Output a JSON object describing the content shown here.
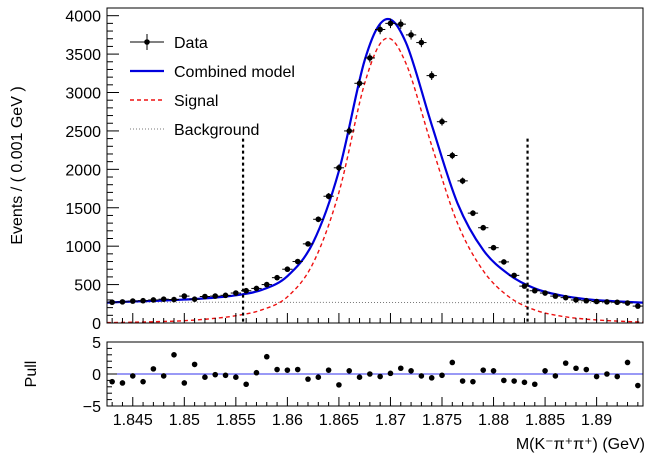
{
  "chart_data": [
    {
      "type": "scatter",
      "panel": "main",
      "xlim": [
        1.8425,
        1.8945
      ],
      "ylim": [
        0,
        4100
      ],
      "ylabel": "Events / ( 0.001 GeV )",
      "x_ticks": [
        "1.845",
        "1.85",
        "1.855",
        "1.86",
        "1.865",
        "1.87",
        "1.875",
        "1.88",
        "1.885",
        "1.89"
      ],
      "y_ticks": [
        "0",
        "500",
        "1000",
        "1500",
        "2000",
        "2500",
        "3000",
        "3500",
        "4000"
      ],
      "legend": {
        "placement": "top-left",
        "entries": [
          {
            "label": "Data",
            "style": "marker",
            "color": "#000000"
          },
          {
            "label": "Combined model",
            "style": "solid",
            "color": "#0000dd"
          },
          {
            "label": "Signal",
            "style": "dashed",
            "color": "#ee1111"
          },
          {
            "label": "Background",
            "style": "dotted",
            "color": "#777777"
          }
        ]
      },
      "signal_window_lines": [
        1.8557,
        1.8833
      ],
      "series": [
        {
          "name": "Data",
          "x": [
            1.843,
            1.844,
            1.845,
            1.846,
            1.847,
            1.848,
            1.849,
            1.85,
            1.851,
            1.852,
            1.853,
            1.854,
            1.855,
            1.856,
            1.857,
            1.858,
            1.859,
            1.86,
            1.861,
            1.862,
            1.863,
            1.864,
            1.865,
            1.866,
            1.867,
            1.868,
            1.869,
            1.87,
            1.871,
            1.872,
            1.873,
            1.874,
            1.875,
            1.876,
            1.877,
            1.878,
            1.879,
            1.88,
            1.881,
            1.882,
            1.883,
            1.884,
            1.885,
            1.886,
            1.887,
            1.888,
            1.889,
            1.89,
            1.891,
            1.892,
            1.893,
            1.894
          ],
          "y": [
            270,
            275,
            285,
            290,
            300,
            310,
            305,
            350,
            310,
            345,
            350,
            360,
            390,
            420,
            450,
            500,
            590,
            700,
            800,
            1030,
            1350,
            1650,
            2020,
            2500,
            3120,
            3450,
            3820,
            3900,
            3890,
            3750,
            3650,
            3220,
            2620,
            2180,
            1850,
            1430,
            1240,
            980,
            795,
            620,
            480,
            420,
            390,
            350,
            330,
            300,
            290,
            280,
            275,
            270,
            260,
            220
          ],
          "err": [
            17,
            17,
            17,
            17,
            17,
            18,
            17,
            19,
            18,
            19,
            19,
            19,
            20,
            20,
            21,
            22,
            24,
            26,
            28,
            32,
            37,
            41,
            45,
            50,
            56,
            59,
            62,
            62,
            62,
            61,
            60,
            57,
            51,
            47,
            43,
            38,
            35,
            31,
            28,
            25,
            22,
            20,
            20,
            19,
            18,
            17,
            17,
            17,
            17,
            16,
            16,
            15
          ]
        },
        {
          "name": "Combined model",
          "x": [
            1.8425,
            1.845,
            1.8475,
            1.85,
            1.8525,
            1.855,
            1.8575,
            1.86,
            1.8625,
            1.865,
            1.8675,
            1.8695,
            1.8715,
            1.874,
            1.8765,
            1.879,
            1.8815,
            1.884,
            1.8865,
            1.889,
            1.8915,
            1.8945
          ],
          "y": [
            265,
            280,
            290,
            305,
            325,
            360,
            430,
            610,
            1050,
            1980,
            3420,
            3950,
            3650,
            2580,
            1560,
            950,
            630,
            450,
            360,
            310,
            285,
            265
          ]
        },
        {
          "name": "Signal",
          "x": [
            1.8425,
            1.845,
            1.8475,
            1.85,
            1.8525,
            1.855,
            1.8575,
            1.86,
            1.8625,
            1.865,
            1.8675,
            1.8695,
            1.8715,
            1.874,
            1.8765,
            1.879,
            1.8815,
            1.884,
            1.8865,
            1.889,
            1.8915,
            1.8945
          ],
          "y": [
            5,
            10,
            18,
            30,
            55,
            95,
            170,
            340,
            780,
            1700,
            3120,
            3700,
            3380,
            2310,
            1300,
            680,
            340,
            170,
            90,
            50,
            28,
            12
          ]
        },
        {
          "name": "Background",
          "x": [
            1.8425,
            1.8945
          ],
          "y": [
            272,
            262
          ]
        }
      ]
    },
    {
      "type": "scatter",
      "panel": "pull",
      "ylabel": "Pull",
      "xlabel": "M(K⁻π⁺π⁺) (GeV)",
      "xlim": [
        1.8425,
        1.8945
      ],
      "ylim": [
        -5,
        5
      ],
      "y_ticks": [
        "5",
        "0",
        "−5"
      ],
      "reference_line": 0,
      "series": [
        {
          "name": "Pull",
          "x": [
            1.843,
            1.844,
            1.845,
            1.846,
            1.847,
            1.848,
            1.849,
            1.85,
            1.851,
            1.852,
            1.853,
            1.854,
            1.855,
            1.856,
            1.857,
            1.858,
            1.859,
            1.86,
            1.861,
            1.862,
            1.863,
            1.864,
            1.865,
            1.866,
            1.867,
            1.868,
            1.869,
            1.87,
            1.871,
            1.872,
            1.873,
            1.874,
            1.875,
            1.876,
            1.877,
            1.878,
            1.879,
            1.88,
            1.881,
            1.882,
            1.883,
            1.884,
            1.885,
            1.886,
            1.887,
            1.888,
            1.889,
            1.89,
            1.891,
            1.892,
            1.893,
            1.894
          ],
          "y": [
            -1.2,
            -1.4,
            -0.3,
            -1.2,
            0.8,
            -0.3,
            3.0,
            -1.4,
            1.5,
            -0.5,
            -0.1,
            -0.2,
            -0.5,
            -1.6,
            0.2,
            2.7,
            0.7,
            0.6,
            0.7,
            -0.8,
            -0.5,
            0.6,
            -1.7,
            0.5,
            -0.5,
            0.0,
            -0.4,
            0.1,
            0.9,
            0.5,
            -0.3,
            -0.6,
            -0.2,
            1.8,
            -1.1,
            -1.2,
            0.6,
            0.5,
            -1.0,
            -1.1,
            -1.3,
            -1.6,
            0.5,
            -0.3,
            1.7,
            0.9,
            0.7,
            -0.4,
            0.0,
            -0.4,
            1.8,
            -1.8
          ]
        }
      ]
    }
  ]
}
